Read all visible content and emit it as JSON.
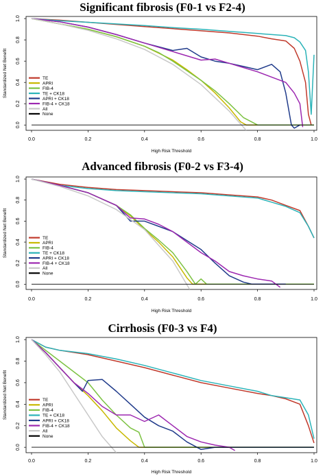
{
  "figure": {
    "colors": {
      "TE": "#c0392b",
      "APRI": "#c8b800",
      "FIB-4": "#7cc242",
      "TE + CK18": "#2ab3b8",
      "APRI + CK18": "#1f3a8a",
      "FIB-4 + CK18": "#9c27b0",
      "All": "#c8c8c8",
      "None": "#000000"
    }
  },
  "chart_data": [
    {
      "type": "line",
      "title": "Significant fibrosis (F0-1 vs F2-4)",
      "xlabel": "High Risk Threshold",
      "ylabel": "Standardized Net Benefit",
      "xlim": [
        0,
        1
      ],
      "ylim": [
        -0.05,
        1.02
      ],
      "xticks": [
        "0.0",
        "0.2",
        "0.4",
        "0.6",
        "0.8",
        "1.0"
      ],
      "yticks": [
        "0.0",
        "0.2",
        "0.4",
        "0.6",
        "0.8",
        "1.0"
      ],
      "legend": [
        "TE",
        "APRI",
        "FIB-4",
        "TE + CK18",
        "APRI + CK18",
        "FIB-4 + CK18",
        "All",
        "None"
      ],
      "legend_position": "bottom-left",
      "series": [
        {
          "name": "TE",
          "x": [
            0,
            0.1,
            0.2,
            0.3,
            0.4,
            0.5,
            0.6,
            0.7,
            0.75,
            0.8,
            0.85,
            0.9,
            0.93,
            0.95,
            0.97,
            0.98,
            0.99
          ],
          "y": [
            1.0,
            0.985,
            0.965,
            0.945,
            0.925,
            0.905,
            0.885,
            0.865,
            0.85,
            0.835,
            0.81,
            0.79,
            0.72,
            0.6,
            0.4,
            0.1,
            0.0
          ]
        },
        {
          "name": "APRI",
          "x": [
            0,
            0.1,
            0.2,
            0.3,
            0.4,
            0.5,
            0.55,
            0.6,
            0.65,
            0.7,
            0.74,
            0.76,
            0.8,
            0.85,
            0.9,
            0.95,
            1.0
          ],
          "y": [
            1.0,
            0.95,
            0.9,
            0.83,
            0.74,
            0.61,
            0.52,
            0.42,
            0.3,
            0.16,
            0.03,
            0.0,
            0.0,
            0.0,
            0.0,
            0.0,
            0.0
          ]
        },
        {
          "name": "FIB-4",
          "x": [
            0,
            0.1,
            0.2,
            0.3,
            0.4,
            0.45,
            0.5,
            0.55,
            0.6,
            0.65,
            0.7,
            0.75,
            0.8,
            0.85,
            0.9,
            0.95,
            1.0
          ],
          "y": [
            1.0,
            0.95,
            0.9,
            0.83,
            0.74,
            0.68,
            0.6,
            0.51,
            0.42,
            0.32,
            0.2,
            0.07,
            0.0,
            0.0,
            0.0,
            0.0,
            0.0
          ]
        },
        {
          "name": "TE + CK18",
          "x": [
            0,
            0.1,
            0.2,
            0.3,
            0.4,
            0.5,
            0.6,
            0.7,
            0.8,
            0.85,
            0.9,
            0.93,
            0.95,
            0.97,
            0.98,
            0.99,
            1.0
          ],
          "y": [
            1.0,
            0.98,
            0.965,
            0.95,
            0.935,
            0.915,
            0.9,
            0.88,
            0.86,
            0.85,
            0.84,
            0.82,
            0.78,
            0.7,
            0.5,
            0.1,
            0.66
          ]
        },
        {
          "name": "APRI + CK18",
          "x": [
            0,
            0.1,
            0.2,
            0.3,
            0.4,
            0.5,
            0.55,
            0.6,
            0.65,
            0.7,
            0.75,
            0.8,
            0.85,
            0.88,
            0.9,
            0.92,
            0.93,
            0.95
          ],
          "y": [
            1.0,
            0.97,
            0.92,
            0.85,
            0.77,
            0.7,
            0.72,
            0.64,
            0.6,
            0.58,
            0.55,
            0.52,
            0.57,
            0.5,
            0.3,
            0.0,
            -0.03,
            0.0
          ]
        },
        {
          "name": "FIB-4 + CK18",
          "x": [
            0,
            0.1,
            0.2,
            0.3,
            0.4,
            0.5,
            0.6,
            0.65,
            0.7,
            0.75,
            0.8,
            0.85,
            0.9,
            0.93,
            0.95,
            0.96
          ],
          "y": [
            1.0,
            0.97,
            0.92,
            0.85,
            0.77,
            0.69,
            0.61,
            0.62,
            0.58,
            0.54,
            0.5,
            0.45,
            0.4,
            0.3,
            0.2,
            -0.02
          ]
        },
        {
          "name": "All",
          "x": [
            0,
            0.1,
            0.2,
            0.3,
            0.4,
            0.5,
            0.6,
            0.7,
            0.76
          ],
          "y": [
            1.0,
            0.95,
            0.89,
            0.81,
            0.71,
            0.57,
            0.38,
            0.13,
            -0.05
          ]
        },
        {
          "name": "None",
          "x": [
            0,
            1.0
          ],
          "y": [
            0,
            0
          ]
        }
      ]
    },
    {
      "type": "line",
      "title": "Advanced fibrosis (F0-2 vs F3-4)",
      "xlabel": "High Risk Threshold",
      "ylabel": "Standardized Net Benefit",
      "xlim": [
        0,
        1
      ],
      "ylim": [
        -0.05,
        1.02
      ],
      "xticks": [
        "0.0",
        "0.2",
        "0.4",
        "0.6",
        "0.8",
        "1.0"
      ],
      "yticks": [
        "0.0",
        "0.2",
        "0.4",
        "0.6",
        "0.8",
        "1.0"
      ],
      "legend": [
        "TE",
        "APRI",
        "FIB-4",
        "TE + CK18",
        "APRI + CK18",
        "FIB-4 + CK18",
        "All",
        "None"
      ],
      "legend_position": "bottom-left",
      "series": [
        {
          "name": "TE",
          "x": [
            0,
            0.1,
            0.2,
            0.3,
            0.4,
            0.5,
            0.6,
            0.7,
            0.8,
            0.85,
            0.9,
            0.95,
            0.98,
            1.0
          ],
          "y": [
            1.0,
            0.95,
            0.92,
            0.9,
            0.89,
            0.88,
            0.87,
            0.85,
            0.83,
            0.8,
            0.75,
            0.7,
            0.55,
            0.44
          ]
        },
        {
          "name": "APRI",
          "x": [
            0,
            0.1,
            0.2,
            0.3,
            0.35,
            0.4,
            0.45,
            0.5,
            0.55,
            0.57,
            0.6,
            0.7,
            0.8,
            1.0
          ],
          "y": [
            1.0,
            0.94,
            0.87,
            0.75,
            0.65,
            0.52,
            0.4,
            0.26,
            0.06,
            0.0,
            0.0,
            0.0,
            0.0,
            0.0
          ]
        },
        {
          "name": "FIB-4",
          "x": [
            0,
            0.1,
            0.2,
            0.3,
            0.35,
            0.4,
            0.45,
            0.5,
            0.55,
            0.58,
            0.6,
            0.62,
            0.65,
            0.7,
            0.8,
            1.0
          ],
          "y": [
            1.0,
            0.94,
            0.87,
            0.75,
            0.66,
            0.53,
            0.42,
            0.3,
            0.12,
            0.0,
            0.05,
            0.0,
            0.0,
            0.0,
            0.0,
            0.0
          ]
        },
        {
          "name": "TE + CK18",
          "x": [
            0,
            0.1,
            0.2,
            0.3,
            0.4,
            0.5,
            0.6,
            0.7,
            0.8,
            0.85,
            0.9,
            0.95,
            0.98,
            1.0
          ],
          "y": [
            1.0,
            0.94,
            0.91,
            0.89,
            0.88,
            0.87,
            0.86,
            0.84,
            0.82,
            0.78,
            0.74,
            0.68,
            0.55,
            0.44
          ]
        },
        {
          "name": "APRI + CK18",
          "x": [
            0,
            0.1,
            0.2,
            0.3,
            0.35,
            0.4,
            0.45,
            0.5,
            0.6,
            0.65,
            0.7,
            0.75,
            0.78,
            0.8,
            0.9
          ],
          "y": [
            1.0,
            0.94,
            0.87,
            0.75,
            0.6,
            0.6,
            0.55,
            0.5,
            0.33,
            0.2,
            0.08,
            0.02,
            0.0,
            0.0,
            0.0
          ]
        },
        {
          "name": "FIB-4 + CK18",
          "x": [
            0,
            0.1,
            0.2,
            0.3,
            0.35,
            0.4,
            0.45,
            0.5,
            0.55,
            0.6,
            0.65,
            0.7,
            0.75,
            0.8,
            0.85,
            0.88
          ],
          "y": [
            1.0,
            0.94,
            0.87,
            0.75,
            0.63,
            0.62,
            0.57,
            0.5,
            0.4,
            0.3,
            0.22,
            0.12,
            0.08,
            0.05,
            0.03,
            -0.03
          ]
        },
        {
          "name": "All",
          "x": [
            0,
            0.1,
            0.2,
            0.3,
            0.4,
            0.5,
            0.56
          ],
          "y": [
            1.0,
            0.93,
            0.84,
            0.71,
            0.52,
            0.22,
            -0.05
          ]
        },
        {
          "name": "None",
          "x": [
            0,
            1.0
          ],
          "y": [
            0,
            0
          ]
        }
      ]
    },
    {
      "type": "line",
      "title": "Cirrhosis (F0-3 vs F4)",
      "xlabel": "High Risk Threshold",
      "ylabel": "Standardized Net Benefit",
      "xlim": [
        0,
        1
      ],
      "ylim": [
        -0.05,
        1.02
      ],
      "xticks": [
        "0.0",
        "0.2",
        "0.4",
        "0.6",
        "0.8",
        "1.0"
      ],
      "yticks": [
        "0.0",
        "0.2",
        "0.4",
        "0.6",
        "0.8",
        "1.0"
      ],
      "legend": [
        "TE",
        "APRI",
        "FIB-4",
        "TE + CK18",
        "APRI + CK18",
        "FIB-4 + CK18",
        "All",
        "None"
      ],
      "legend_position": "bottom-left",
      "series": [
        {
          "name": "TE",
          "x": [
            0,
            0.05,
            0.1,
            0.2,
            0.3,
            0.4,
            0.5,
            0.6,
            0.7,
            0.8,
            0.85,
            0.9,
            0.95,
            0.98,
            1.0
          ],
          "y": [
            1.0,
            0.93,
            0.9,
            0.86,
            0.8,
            0.74,
            0.67,
            0.6,
            0.55,
            0.5,
            0.48,
            0.45,
            0.4,
            0.2,
            0.04
          ]
        },
        {
          "name": "APRI",
          "x": [
            0,
            0.05,
            0.1,
            0.15,
            0.2,
            0.25,
            0.3,
            0.35,
            0.38,
            0.4,
            0.45,
            0.5,
            1.0
          ],
          "y": [
            1.0,
            0.88,
            0.74,
            0.6,
            0.48,
            0.34,
            0.18,
            0.06,
            0.0,
            0.0,
            0.0,
            0.0,
            0.0
          ]
        },
        {
          "name": "FIB-4",
          "x": [
            0,
            0.1,
            0.2,
            0.25,
            0.3,
            0.35,
            0.38,
            0.4,
            0.5,
            0.6,
            0.7,
            0.78,
            0.8,
            1.0
          ],
          "y": [
            1.0,
            0.8,
            0.6,
            0.44,
            0.3,
            0.18,
            0.14,
            0.0,
            0.0,
            0.0,
            0.0,
            0.0,
            0.0,
            0.0
          ]
        },
        {
          "name": "TE + CK18",
          "x": [
            0,
            0.05,
            0.1,
            0.2,
            0.3,
            0.4,
            0.5,
            0.6,
            0.7,
            0.8,
            0.85,
            0.9,
            0.95,
            0.98,
            1.0
          ],
          "y": [
            1.0,
            0.93,
            0.9,
            0.87,
            0.82,
            0.76,
            0.69,
            0.62,
            0.57,
            0.52,
            0.48,
            0.46,
            0.44,
            0.3,
            0.08
          ]
        },
        {
          "name": "APRI + CK18",
          "x": [
            0,
            0.05,
            0.1,
            0.15,
            0.18,
            0.2,
            0.25,
            0.3,
            0.35,
            0.4,
            0.45,
            0.5,
            0.55,
            0.6,
            0.65,
            1.0
          ],
          "y": [
            1.0,
            0.88,
            0.74,
            0.6,
            0.52,
            0.62,
            0.63,
            0.52,
            0.4,
            0.28,
            0.2,
            0.15,
            0.05,
            -0.02,
            0.0,
            0.0
          ]
        },
        {
          "name": "FIB-4 + CK18",
          "x": [
            0,
            0.05,
            0.1,
            0.15,
            0.2,
            0.25,
            0.3,
            0.35,
            0.4,
            0.45,
            0.5,
            0.55,
            0.6,
            0.65,
            0.7,
            0.72
          ],
          "y": [
            1.0,
            0.88,
            0.74,
            0.6,
            0.5,
            0.38,
            0.3,
            0.3,
            0.24,
            0.3,
            0.2,
            0.1,
            0.05,
            0.02,
            0.0,
            -0.03
          ]
        },
        {
          "name": "All",
          "x": [
            0,
            0.05,
            0.1,
            0.15,
            0.2,
            0.25,
            0.3
          ],
          "y": [
            1.0,
            0.86,
            0.7,
            0.5,
            0.3,
            0.1,
            -0.05
          ]
        },
        {
          "name": "None",
          "x": [
            0,
            1.0
          ],
          "y": [
            0,
            0
          ]
        }
      ]
    }
  ]
}
